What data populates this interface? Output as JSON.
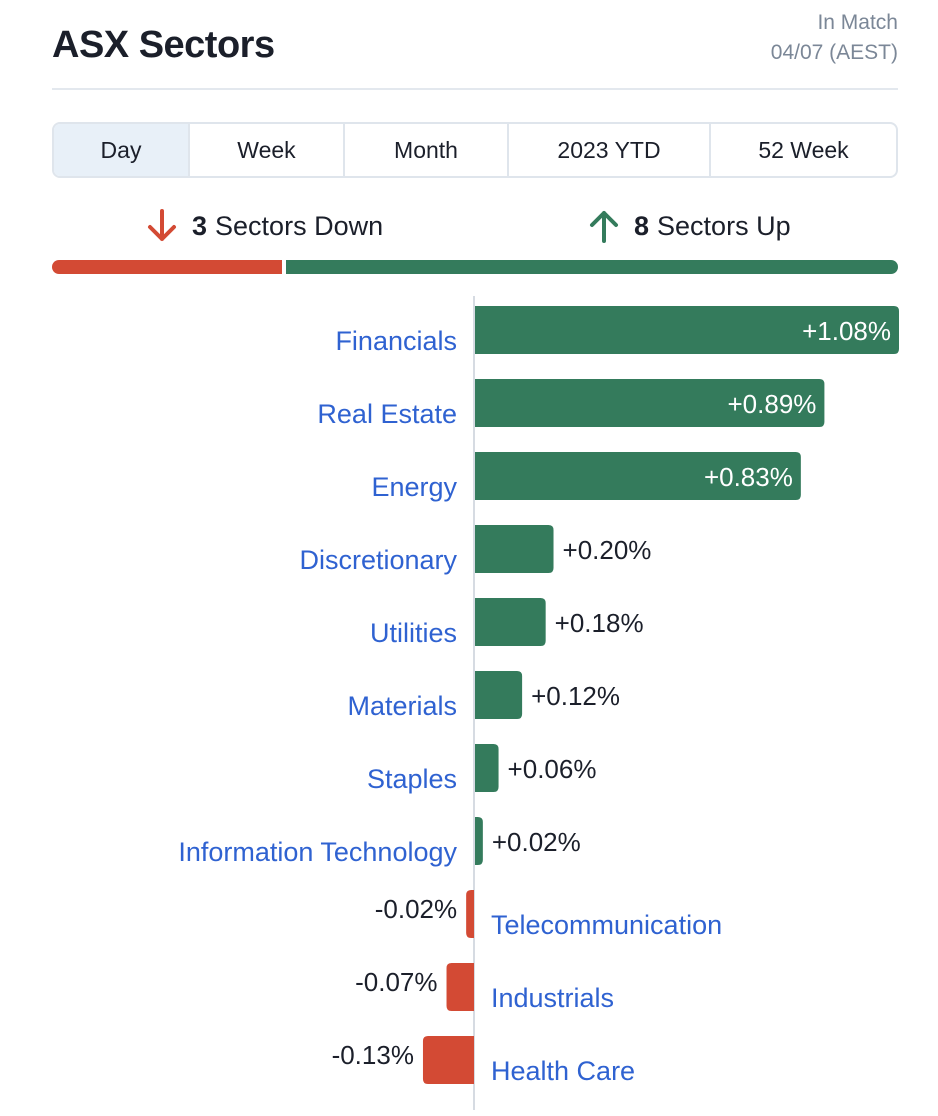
{
  "header": {
    "title": "ASX Sectors",
    "status_line1": "In Match",
    "status_line2": "04/07 (AEST)"
  },
  "tabs": [
    {
      "label": "Day",
      "active": true
    },
    {
      "label": "Week",
      "active": false
    },
    {
      "label": "Month",
      "active": false
    },
    {
      "label": "2023 YTD",
      "active": false
    },
    {
      "label": "52 Week",
      "active": false
    }
  ],
  "summary": {
    "down_count": "3",
    "down_label": "Sectors Down",
    "up_count": "8",
    "up_label": "Sectors Up"
  },
  "colors": {
    "up": "#347b5c",
    "down": "#d34a34",
    "label": "#2f62d1"
  },
  "chart_data": {
    "type": "bar",
    "orientation": "horizontal",
    "categories": [
      "Financials",
      "Real Estate",
      "Energy",
      "Discretionary",
      "Utilities",
      "Materials",
      "Staples",
      "Information Technology",
      "Telecommunication",
      "Industrials",
      "Health Care"
    ],
    "values": [
      1.08,
      0.89,
      0.83,
      0.2,
      0.18,
      0.12,
      0.06,
      0.02,
      -0.02,
      -0.07,
      -0.13
    ],
    "value_labels": [
      "+1.08%",
      "+0.89%",
      "+0.83%",
      "+0.20%",
      "+0.18%",
      "+0.12%",
      "+0.06%",
      "+0.02%",
      "-0.02%",
      "-0.07%",
      "-0.13%"
    ],
    "xlim": [
      -0.13,
      1.08
    ],
    "grid": false,
    "title": ""
  }
}
